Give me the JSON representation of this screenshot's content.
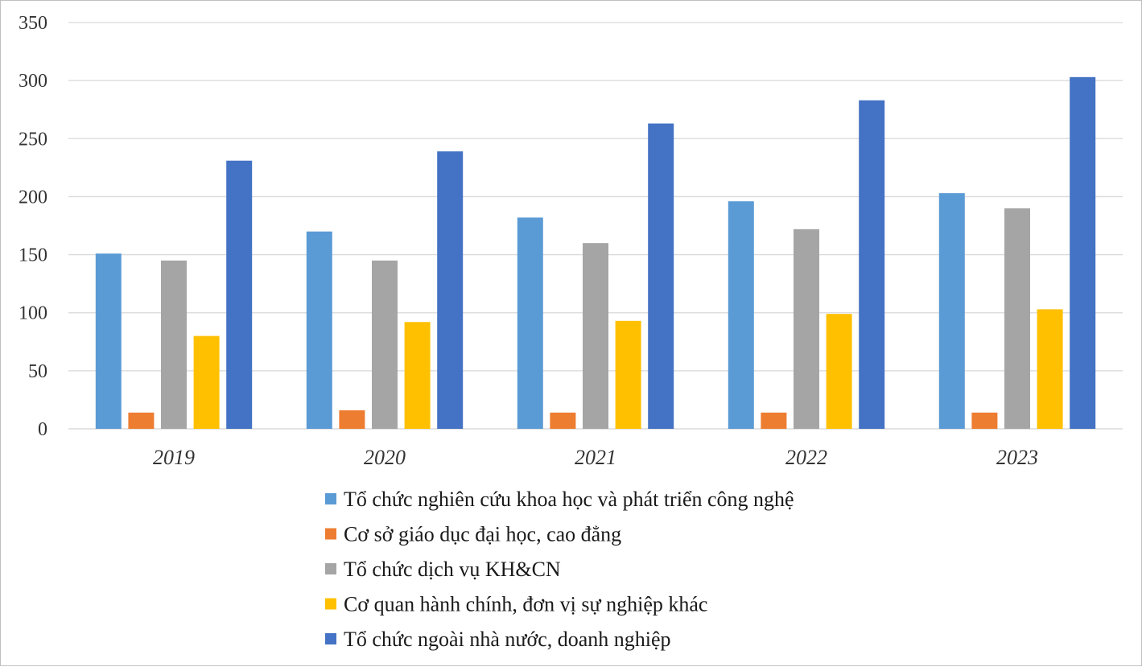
{
  "chart_data": {
    "type": "bar",
    "categories": [
      "2019",
      "2020",
      "2021",
      "2022",
      "2023"
    ],
    "ylim": [
      0,
      350
    ],
    "yticks": [
      0,
      50,
      100,
      150,
      200,
      250,
      300,
      350
    ],
    "grid": true,
    "legend_position": "bottom",
    "series": [
      {
        "name": "Tổ chức nghiên cứu khoa học và phát triển công nghệ",
        "color": "#5b9bd5",
        "values": [
          151,
          170,
          182,
          196,
          203
        ]
      },
      {
        "name": "Cơ sở giáo dục đại học, cao đẳng",
        "color": "#ed7d31",
        "values": [
          14,
          16,
          14,
          14,
          14
        ]
      },
      {
        "name": "Tổ chức dịch vụ KH&CN",
        "color": "#a5a5a5",
        "values": [
          145,
          145,
          160,
          172,
          190
        ]
      },
      {
        "name": "Cơ quan hành chính, đơn vị sự nghiệp khác",
        "color": "#ffc000",
        "values": [
          80,
          92,
          93,
          99,
          103
        ]
      },
      {
        "name": "Tổ chức ngoài nhà nước, doanh nghiệp",
        "color": "#4472c4",
        "values": [
          231,
          239,
          263,
          283,
          303
        ]
      }
    ]
  }
}
